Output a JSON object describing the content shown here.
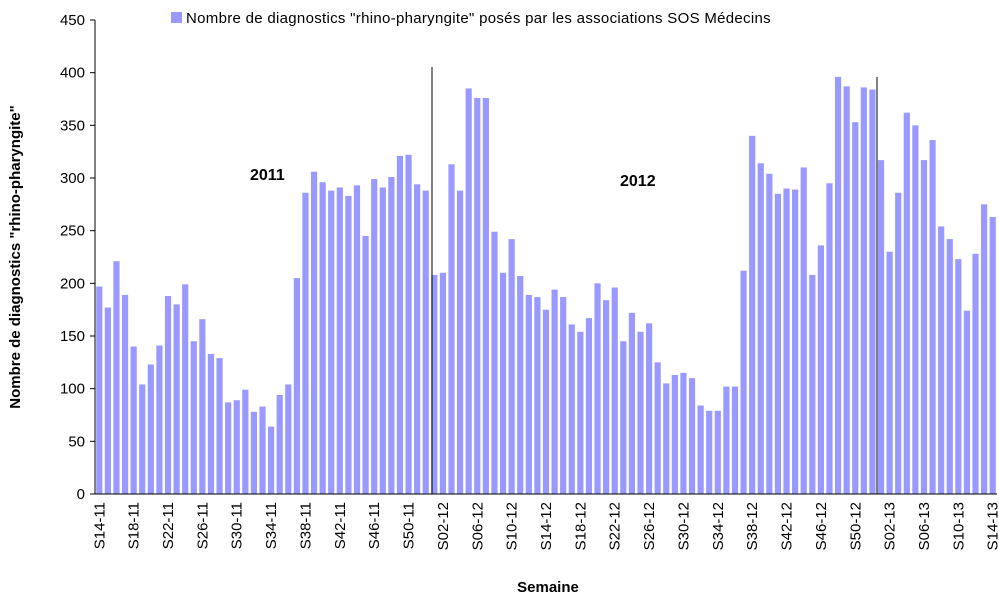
{
  "chart_data": {
    "type": "bar",
    "y_label": "Nombre de diagnostics \"rhino-pharyngite\"",
    "x_label": "Semaine",
    "annotations": [
      "2011",
      "2012"
    ],
    "categories": [
      "S14-11",
      null,
      null,
      null,
      "S18-11",
      null,
      null,
      null,
      "S22-11",
      null,
      null,
      null,
      "S26-11",
      null,
      null,
      null,
      "S30-11",
      null,
      null,
      null,
      "S34-11",
      null,
      null,
      null,
      "S38-11",
      null,
      null,
      null,
      "S42-11",
      null,
      null,
      null,
      "S46-11",
      null,
      null,
      null,
      "S50-11",
      null,
      null,
      null,
      "S02-12",
      null,
      null,
      null,
      "S06-12",
      null,
      null,
      null,
      "S10-12",
      null,
      null,
      null,
      "S14-12",
      null,
      null,
      null,
      "S18-12",
      null,
      null,
      null,
      "S22-12",
      null,
      null,
      null,
      "S26-12",
      null,
      null,
      null,
      "S30-12",
      null,
      null,
      null,
      "S34-12",
      null,
      null,
      null,
      "S38-12",
      null,
      null,
      null,
      "S42-12",
      null,
      null,
      null,
      "S46-12",
      null,
      null,
      null,
      "S50-12",
      null,
      null,
      null,
      "S02-13",
      null,
      null,
      null,
      "S06-13",
      null,
      null,
      null,
      "S10-13",
      null,
      null,
      null,
      "S14-13"
    ],
    "series": [
      {
        "name": "Nombre de diagnostics \"rhino-pharyngite\" posés par les associations SOS Médecins",
        "color": "#9999ff",
        "values": [
          197,
          177,
          221,
          189,
          140,
          104,
          123,
          141,
          188,
          180,
          199,
          145,
          166,
          133,
          129,
          87,
          89,
          99,
          78,
          83,
          64,
          94,
          104,
          205,
          286,
          306,
          296,
          288,
          291,
          283,
          293,
          245,
          299,
          291,
          301,
          321,
          322,
          294,
          288,
          208,
          210,
          313,
          288,
          385,
          376,
          376,
          249,
          210,
          242,
          207,
          189,
          187,
          175,
          194,
          187,
          161,
          154,
          167,
          200,
          184,
          196,
          145,
          172,
          154,
          162,
          125,
          105,
          113,
          115,
          110,
          84,
          79,
          79,
          102,
          102,
          212,
          340,
          314,
          304,
          285,
          290,
          289,
          310,
          208,
          236,
          295,
          396,
          387,
          353,
          386,
          384,
          317,
          230,
          286,
          362,
          350,
          317,
          336,
          254,
          242,
          223,
          174,
          228,
          275,
          263
        ]
      }
    ],
    "ylim": [
      0,
      450
    ],
    "yticks": [
      0,
      50,
      100,
      150,
      200,
      250,
      300,
      350,
      400,
      450
    ]
  }
}
